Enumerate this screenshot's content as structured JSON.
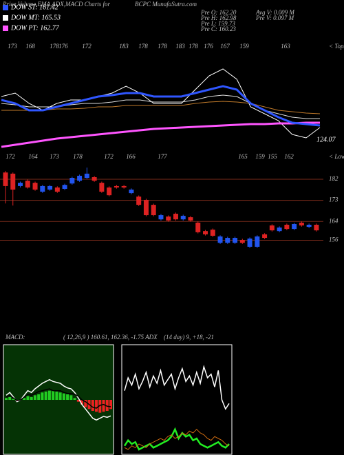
{
  "header": {
    "title": "Price,Volume,EMA,ADX,MACD Charts for",
    "site": "BCPC MunafaSutra.com"
  },
  "legend": [
    {
      "label": "DOW ST: 161.42",
      "color": "#2f56ff"
    },
    {
      "label": "DOW MT: 165.53",
      "color": "#ffffff"
    },
    {
      "label": "DOW PT: 162.77",
      "color": "#ff55ff"
    }
  ],
  "info": {
    "left": [
      "Pre  O: 162.20",
      "Pre  H: 162.98",
      "Pre  L: 159.73",
      "Pre  C: 160.23"
    ],
    "right": [
      "Avg V: 0.009 M",
      "Pre  V: 0.097 M"
    ]
  },
  "chart_data": [
    {
      "type": "line",
      "ylim": [
        120,
        190
      ],
      "annotation": "124.07",
      "tops": [
        173,
        168,
        178,
        176,
        172,
        183,
        178,
        178,
        183,
        178,
        176,
        167,
        159,
        163
      ],
      "tops_label": "< Tops",
      "lows": [
        172,
        164,
        173,
        178,
        172,
        166,
        177,
        165,
        159,
        155,
        162
      ],
      "lows_label": "< Lows",
      "series": [
        {
          "color": "#ffffff",
          "width": 1,
          "values": [
            157.5,
            160,
            152.5,
            147.5,
            152.5,
            155,
            155,
            157.5,
            160,
            165,
            160,
            152.5,
            152.5,
            152.5,
            162.5,
            172.5,
            177.5,
            170,
            150,
            145,
            140,
            130,
            127.5,
            135
          ]
        },
        {
          "color": "#ff55ff",
          "width": 3,
          "values": [
            121,
            122.5,
            124,
            125.5,
            127,
            128,
            129,
            130,
            131,
            132,
            133,
            134,
            134.5,
            135,
            135.5,
            136,
            136.5,
            137,
            137.5,
            137.5,
            138,
            138,
            138.5,
            138.5
          ]
        },
        {
          "color": "#c07a2a",
          "width": 1,
          "values": [
            147.5,
            147.5,
            147.5,
            147.5,
            148.5,
            148.5,
            149,
            150,
            150,
            151,
            151,
            151,
            151,
            151,
            152.5,
            153.5,
            154,
            153.5,
            152.5,
            150,
            147.5,
            146.5,
            145.5,
            145
          ]
        },
        {
          "color": "#dddddd",
          "width": 1,
          "values": [
            152.5,
            151.5,
            150,
            150,
            150,
            151.5,
            152.5,
            152.5,
            153.5,
            155,
            155,
            153.5,
            153.5,
            153.5,
            155,
            157.5,
            158.5,
            157.5,
            152.5,
            147.5,
            145,
            142.5,
            141.5,
            141.5
          ]
        },
        {
          "color": "#2f56ff",
          "width": 3,
          "values": [
            155,
            152.5,
            147.5,
            147.5,
            150,
            152.5,
            155,
            157.5,
            158.5,
            160,
            160,
            157.5,
            157.5,
            157.5,
            160,
            162.5,
            165,
            162.5,
            152.5,
            147.5,
            142.5,
            138.5,
            137.5,
            136.5
          ]
        }
      ]
    },
    {
      "type": "candlestick",
      "ylim": [
        152.6,
        187.9
      ],
      "yticks": [
        182,
        173,
        164,
        156
      ],
      "up_color": "#2255ee",
      "down_color": "#dd2222",
      "level_color": "#7a2a1a",
      "open": [
        184.9,
        184.4,
        179.1,
        181.4,
        180.5,
        176.7,
        177.6,
        178.5,
        177.9,
        180.2,
        181.4,
        182.6,
        182.9,
        180.5,
        178.5,
        179.1,
        179.1,
        176.1,
        174.6,
        173.2,
        171.1,
        164.9,
        166.1,
        167.3,
        164.9,
        165.8,
        163.5,
        159.9,
        160.5,
        154.9,
        154.9,
        154.9,
        156.1,
        153.2,
        153.2,
        158.5,
        162.3,
        159.9,
        162.6,
        160.8,
        163.5,
        161.7,
        162.6
      ],
      "high": [
        185.5,
        184.9,
        181,
        181.9,
        181,
        179.6,
        179.6,
        179,
        180.1,
        183.1,
        184,
        187,
        183.4,
        181,
        179,
        179.6,
        179.6,
        178.1,
        175.1,
        173.7,
        171.6,
        167.2,
        166.6,
        167.8,
        166.9,
        166.3,
        164,
        160.4,
        161,
        158.1,
        157.5,
        157.5,
        156.6,
        157.2,
        158.1,
        159,
        162.8,
        161.9,
        163.1,
        163.4,
        164,
        163.1,
        163.1
      ],
      "low": [
        171.7,
        170.8,
        178.5,
        178,
        177.1,
        176.2,
        177.1,
        176.2,
        177.4,
        179.7,
        180.9,
        182.1,
        180.9,
        176.2,
        174.7,
        178,
        178,
        175.6,
        170.6,
        166.2,
        166.2,
        164.4,
        163.9,
        164.4,
        164.4,
        163.9,
        158.9,
        158,
        157.4,
        154.4,
        154.4,
        154.4,
        154.4,
        152.7,
        152.7,
        156.5,
        159.7,
        159.4,
        160.3,
        160.3,
        161.8,
        161.2,
        159.7
      ],
      "close": [
        179.1,
        177.6,
        180.5,
        178.5,
        177.6,
        179.1,
        179.1,
        176.7,
        179.6,
        182.6,
        183.5,
        184.4,
        181.4,
        176.7,
        175.2,
        178.5,
        178.5,
        177.6,
        171.1,
        166.7,
        166.7,
        166.7,
        164.4,
        164.9,
        166.4,
        164.4,
        159.4,
        158.5,
        157.9,
        157.6,
        157,
        157,
        154.9,
        156.7,
        157.6,
        157,
        160.2,
        161.4,
        160.8,
        162.9,
        162.3,
        162.6,
        160.2
      ]
    },
    {
      "type": "macd",
      "title": "MACD:",
      "subtitle": "( 12,26,9 ) 160.61, 162.36, -1.75 ADX",
      "ylim": [
        -6,
        6
      ],
      "background": "#053305",
      "histogram": [
        0.2,
        0.3,
        0.1,
        -0.1,
        0,
        0.2,
        0.4,
        0.3,
        0.5,
        0.6,
        0.8,
        0.9,
        1,
        1,
        0.9,
        0.8,
        0.7,
        0.6,
        0.5,
        0.2,
        -0.2,
        -0.5,
        -0.8,
        -1,
        -1.2,
        -1.3,
        -1.4,
        -1.3,
        -1.2,
        -1
      ],
      "up_color": "#22cc22",
      "down_color": "#ee2222",
      "series": [
        {
          "color": "#ffffff",
          "values": [
            0.5,
            0.8,
            0.3,
            -0.2,
            0,
            0.5,
            1,
            0.8,
            1.2,
            1.5,
            1.8,
            2,
            2.2,
            2,
            1.9,
            1.8,
            1.5,
            1.3,
            1.2,
            0.8,
            0.2,
            -0.5,
            -1,
            -1.5,
            -2,
            -2.2,
            -2,
            -1.8,
            -1.9,
            -1.75
          ]
        },
        {
          "color": "#000000",
          "values": [
            0.3,
            0.5,
            0.2,
            -0.1,
            0,
            0.3,
            0.6,
            0.5,
            0.7,
            0.9,
            1,
            1.1,
            1.2,
            1,
            1,
            1,
            0.8,
            0.7,
            0.7,
            0.6,
            0.4,
            0,
            -0.2,
            -0.5,
            -0.8,
            -0.9,
            -0.6,
            -0.5,
            -0.7,
            -0.75
          ]
        }
      ]
    },
    {
      "type": "line",
      "title": "(14 day) 9, +18, -21",
      "ylim": [
        0,
        60
      ],
      "background": "#000000",
      "series": [
        {
          "color": "#ffffff",
          "width": 1.5,
          "values": [
            35,
            42,
            38,
            44,
            36,
            40,
            45,
            37,
            43,
            39,
            46,
            38,
            41,
            44,
            36,
            42,
            47,
            40,
            43,
            38,
            45,
            39,
            48,
            42,
            44,
            37,
            46,
            30,
            25,
            28
          ]
        },
        {
          "color": "#22ee22",
          "width": 2.5,
          "values": [
            5,
            8,
            6,
            7,
            3,
            4,
            5,
            6,
            4,
            5,
            6,
            7,
            8,
            10,
            14,
            9,
            12,
            10,
            11,
            8,
            9,
            6,
            5,
            4,
            5,
            6,
            7,
            5,
            4,
            6
          ]
        },
        {
          "color": "#cc6a10",
          "width": 1,
          "values": [
            4,
            3,
            5,
            4,
            6,
            5,
            4,
            6,
            7,
            8,
            9,
            8,
            10,
            11,
            9,
            10,
            12,
            11,
            13,
            12,
            14,
            12,
            11,
            9,
            8,
            10,
            9,
            8,
            6,
            5
          ]
        }
      ]
    }
  ]
}
